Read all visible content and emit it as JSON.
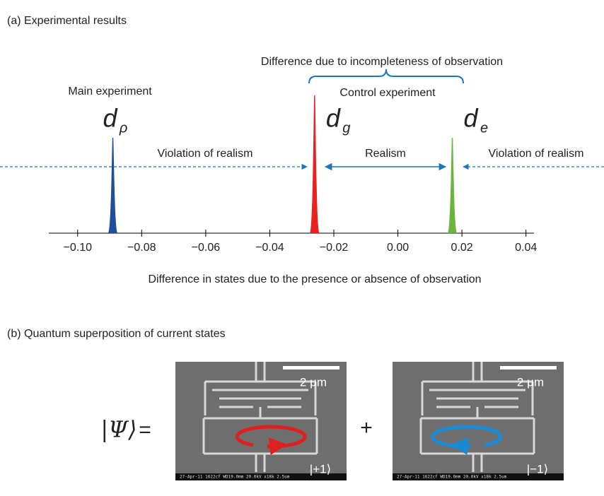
{
  "chart_data": {
    "type": "peaks",
    "title": "(a) Experimental results",
    "xlabel": "Difference in states due to the presence or absence of observation",
    "xlim": [
      -0.109,
      0.0425
    ],
    "xticks": [
      {
        "value": -0.1,
        "label": "−0.10"
      },
      {
        "value": -0.08,
        "label": "−0.08"
      },
      {
        "value": -0.06,
        "label": "−0.06"
      },
      {
        "value": -0.04,
        "label": "−0.04"
      },
      {
        "value": -0.02,
        "label": "−0.02"
      },
      {
        "value": 0,
        "label": "0.00"
      },
      {
        "value": 0.02,
        "label": "0.02"
      },
      {
        "value": 0.04,
        "label": "0.04"
      }
    ],
    "series": [
      {
        "name": "Main experiment",
        "symbol": "d",
        "subscript": "ρ",
        "color": "#1f4e9c",
        "x": -0.089
      },
      {
        "symbol": "d",
        "subscript": "g",
        "color": "#e8231f",
        "x": -0.026
      },
      {
        "symbol": "d",
        "subscript": "e",
        "color": "#6cb33f",
        "x": 0.017
      }
    ],
    "annotations": {
      "brace": "Difference due to incompleteness of observation",
      "control": "Control experiment",
      "violation_left": "Violation of realism",
      "realism": "Realism",
      "violation_right": "Violation of realism"
    }
  },
  "panel_b": {
    "title": "(b) Quantum superposition of current states",
    "state": "|Ψ⟩",
    "equals": "=",
    "plus": "+",
    "images": [
      {
        "scale": "2 μm",
        "ket": "|+1⟩",
        "footer": "27-Apr-11   1622cf WD19.0mm 20.0kV x18k 2.5um"
      },
      {
        "scale": "2 μm",
        "ket": "|−1⟩",
        "footer": "27-Apr-11   1622cf WD19.0mm 20.0kV x18k 2.5um"
      }
    ]
  }
}
